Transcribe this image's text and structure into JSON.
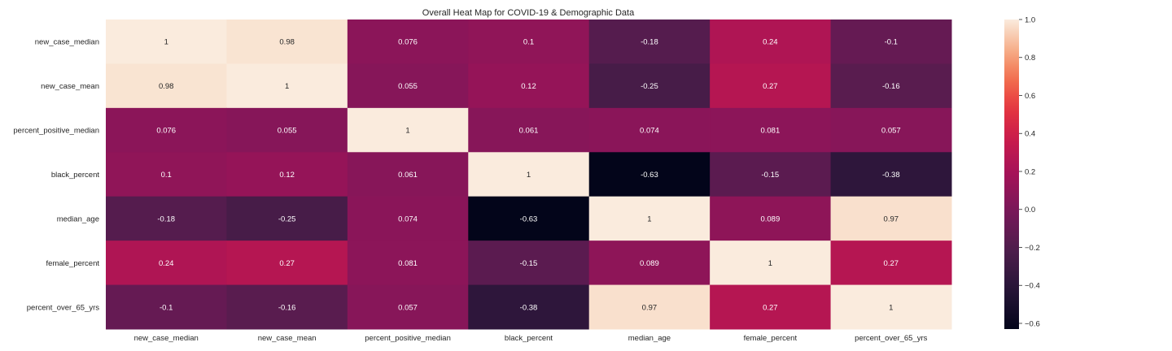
{
  "chart_data": {
    "type": "heatmap",
    "title": "Overall Heat Map for COVID-19 & Demographic Data",
    "xlabel": "",
    "ylabel": "",
    "x_categories": [
      "new_case_median",
      "new_case_mean",
      "percent_positive_median",
      "black_percent",
      "median_age",
      "female_percent",
      "percent_over_65_yrs"
    ],
    "y_categories": [
      "new_case_median",
      "new_case_mean",
      "percent_positive_median",
      "black_percent",
      "median_age",
      "female_percent",
      "percent_over_65_yrs"
    ],
    "values": [
      [
        1,
        0.98,
        0.076,
        0.1,
        -0.18,
        0.24,
        -0.1
      ],
      [
        0.98,
        1,
        0.055,
        0.12,
        -0.25,
        0.27,
        -0.16
      ],
      [
        0.076,
        0.055,
        1,
        0.061,
        0.074,
        0.081,
        0.057
      ],
      [
        0.1,
        0.12,
        0.061,
        1,
        -0.63,
        -0.15,
        -0.38
      ],
      [
        -0.18,
        -0.25,
        0.074,
        -0.63,
        1,
        0.089,
        0.97
      ],
      [
        0.24,
        0.27,
        0.081,
        -0.15,
        0.089,
        1,
        0.27
      ],
      [
        -0.1,
        -0.16,
        0.057,
        -0.38,
        0.97,
        0.27,
        1
      ]
    ],
    "labels": [
      [
        "1",
        "0.98",
        "0.076",
        "0.1",
        "-0.18",
        "0.24",
        "-0.1"
      ],
      [
        "0.98",
        "1",
        "0.055",
        "0.12",
        "-0.25",
        "0.27",
        "-0.16"
      ],
      [
        "0.076",
        "0.055",
        "1",
        "0.061",
        "0.074",
        "0.081",
        "0.057"
      ],
      [
        "0.1",
        "0.12",
        "0.061",
        "1",
        "-0.63",
        "-0.15",
        "-0.38"
      ],
      [
        "-0.18",
        "-0.25",
        "0.074",
        "-0.63",
        "1",
        "0.089",
        "0.97"
      ],
      [
        "0.24",
        "0.27",
        "0.081",
        "-0.15",
        "0.089",
        "1",
        "0.27"
      ],
      [
        "-0.1",
        "-0.16",
        "0.057",
        "-0.38",
        "0.97",
        "0.27",
        "1"
      ]
    ],
    "colormap": "rocket",
    "vmin": -0.63,
    "vmax": 1.0,
    "colorbar_ticks": [
      1.0,
      0.8,
      0.6,
      0.4,
      0.2,
      0.0,
      -0.2,
      -0.4,
      -0.6
    ],
    "colorbar_tick_labels": [
      "1.0",
      "0.8",
      "0.6",
      "0.4",
      "0.2",
      "0.0",
      "−0.2",
      "−0.4",
      "−0.6"
    ],
    "legend_placement": "right",
    "grid": false
  }
}
